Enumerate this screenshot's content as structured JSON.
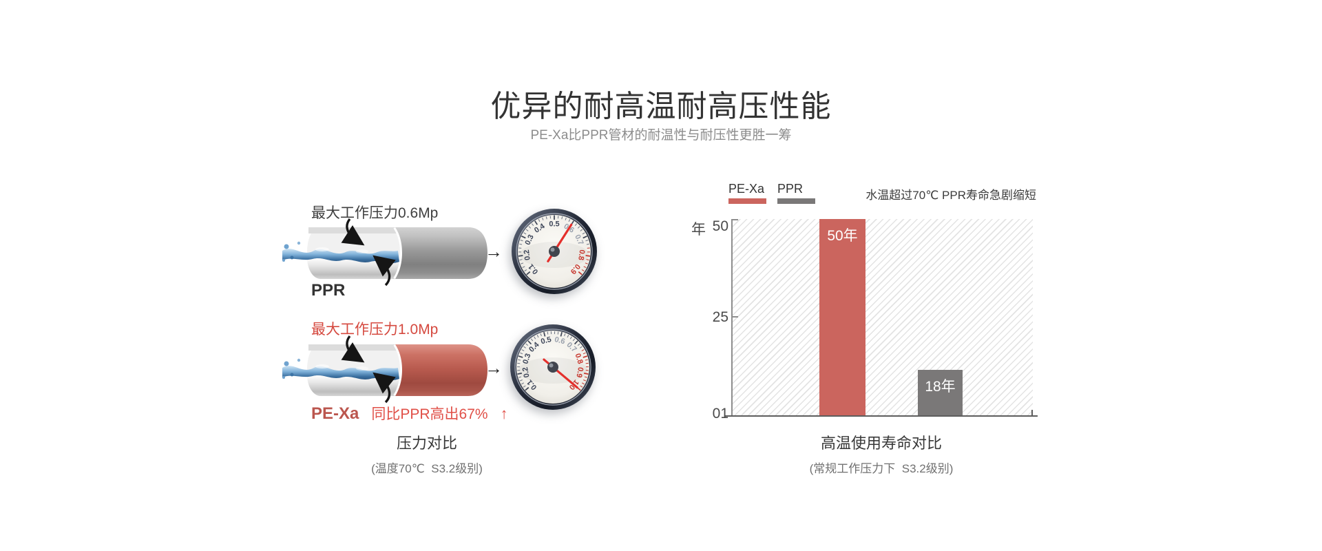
{
  "header": {
    "title": "优异的耐高温耐高压性能",
    "subtitle": "PE-Xa比PPR管材的耐温性与耐压性更胜一筹"
  },
  "icons": {
    "right_arrow": "→",
    "up_arrow": "↑",
    "curved_arrow_note": "black curved pointer arrows on pipe cutaways"
  },
  "colors": {
    "accent_red": "#cb655e",
    "bright_red_text": "#e04f47",
    "pipe_red": "#b85a4e",
    "neutral_gray": "#7a7878",
    "dark_text": "#333333",
    "muted_text": "#8c8c8c",
    "gauge_needle_red": "#e42f2b"
  },
  "pressure_section": {
    "ppr": {
      "pressure_label": "最大工作压力0.6Mp",
      "name": "PPR"
    },
    "pexa": {
      "pressure_label": "最大工作压力1.0Mp",
      "name": "PE-Xa",
      "comparison": "同比PPR高出67%",
      "up_arrow": "↑"
    },
    "caption": "压力对比",
    "subcaption": "(温度70℃  S3.2级别)",
    "gauges": [
      {
        "name": "ppr-gauge",
        "labels": [
          "0.1",
          "0.2",
          "0.3",
          "0.4",
          "0.5",
          "0.6",
          "0.7",
          "0.8",
          "0.9"
        ],
        "muted_labels": [
          "0.6",
          "0.7"
        ],
        "red_labels": [
          "0.8",
          "0.9"
        ],
        "needle_at": "0.6"
      },
      {
        "name": "pexa-gauge",
        "labels": [
          "0.1",
          "0.2",
          "0.3",
          "0.4",
          "0.5",
          "0.6",
          "0.7",
          "0.8",
          "0.9",
          "1.0"
        ],
        "muted_labels": [
          "0.6",
          "0.7"
        ],
        "red_labels": [
          "0.8",
          "0.9",
          "1.0"
        ],
        "needle_at": "1.0"
      }
    ]
  },
  "lifetime_section": {
    "legend": [
      {
        "label": "PE-Xa",
        "color": "#cb655e"
      },
      {
        "label": "PPR",
        "color": "#7a7878"
      }
    ],
    "note": "水温超过70℃ PPR寿命急剧缩短",
    "axis": {
      "unit": "年",
      "ticks": [
        "50",
        "25",
        "01"
      ]
    },
    "caption": "高温使用寿命对比",
    "subcaption": "(常规工作压力下  S3.2级别)"
  },
  "chart_data": {
    "type": "bar",
    "categories": [
      "PE-Xa",
      "PPR"
    ],
    "values": [
      50,
      18
    ],
    "unit": "年",
    "bar_labels": [
      "50年",
      "18年"
    ],
    "bar_colors": [
      "#cb655e",
      "#7a7878"
    ],
    "title": "高温使用寿命对比",
    "xlabel": "",
    "ylabel": "年",
    "ylim": [
      0,
      50
    ],
    "yticks_shown": [
      "01",
      "25",
      "50"
    ],
    "legend_position": "top-left",
    "plot_background": "light diagonal hatch",
    "display_height_pct": [
      100,
      23
    ]
  }
}
